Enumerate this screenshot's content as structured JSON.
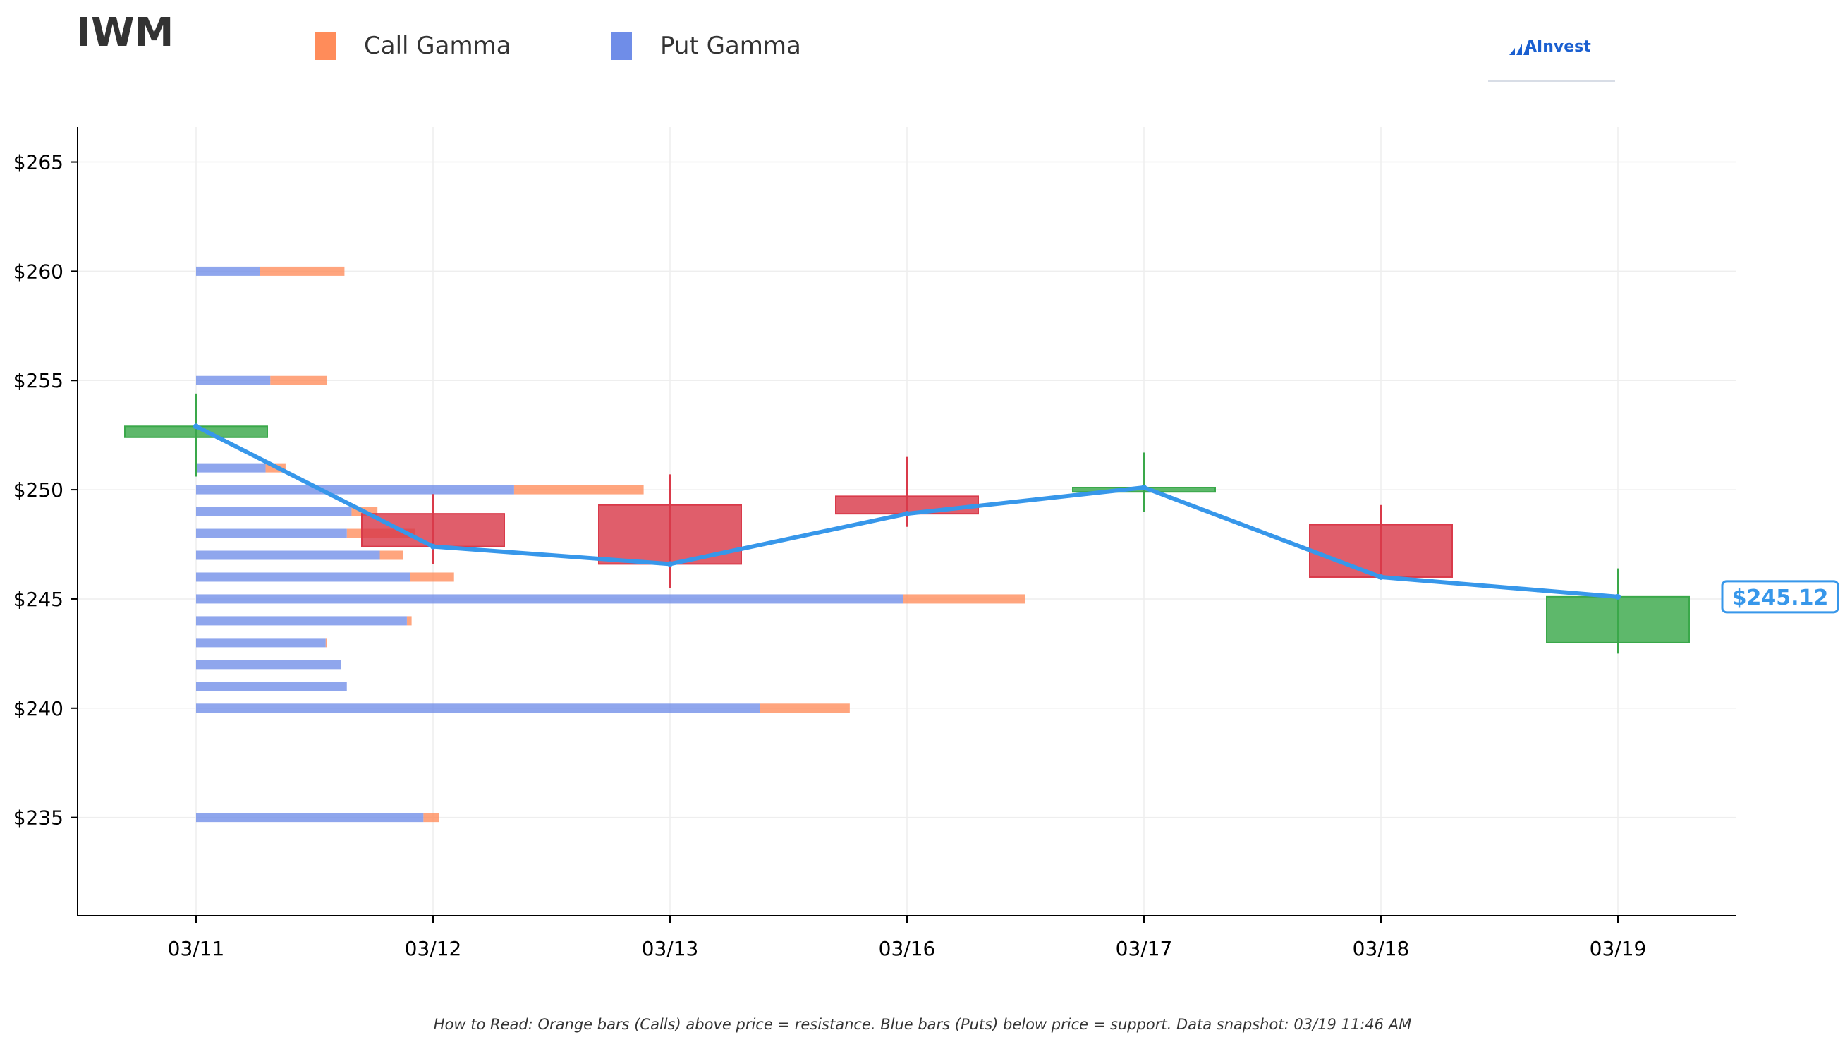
{
  "header": {
    "title": "IWM",
    "logo_text": "AInvest"
  },
  "footnote": "How to Read: Orange bars (Calls) above price = resistance. Blue bars (Puts) below price = support. Data snapshot: 03/19 11:46 AM",
  "colors": {
    "call": "#ff8c5a",
    "put": "#6f8de8",
    "up": "#3aa84a",
    "down": "#d93a4a",
    "price_line": "#3797ea"
  },
  "chart_data": {
    "type": "candlestick+bar",
    "title": "IWM",
    "legend": {
      "placement": "top-left",
      "entries": [
        {
          "name": "Call Gamma",
          "color": "#ff8c5a"
        },
        {
          "name": "Put Gamma",
          "color": "#6f8de8"
        }
      ]
    },
    "x_categories": [
      "03/11",
      "03/12",
      "03/13",
      "03/16",
      "03/17",
      "03/18",
      "03/19"
    ],
    "y_ticks": [
      {
        "value": 235,
        "label": "$235"
      },
      {
        "value": 240,
        "label": "$240"
      },
      {
        "value": 245,
        "label": "$245"
      },
      {
        "value": 250,
        "label": "$250"
      },
      {
        "value": 255,
        "label": "$255"
      },
      {
        "value": 260,
        "label": "$260"
      },
      {
        "value": 265,
        "label": "$265"
      }
    ],
    "ylim": [
      230.5,
      266.6
    ],
    "grid": true,
    "candles": [
      {
        "date": "03/11",
        "open": 252.4,
        "close": 252.9,
        "high": 254.4,
        "low": 250.6
      },
      {
        "date": "03/12",
        "open": 248.9,
        "close": 247.4,
        "high": 249.8,
        "low": 246.6
      },
      {
        "date": "03/13",
        "open": 249.3,
        "close": 246.6,
        "high": 250.7,
        "low": 245.5
      },
      {
        "date": "03/16",
        "open": 249.7,
        "close": 248.9,
        "high": 251.5,
        "low": 248.3
      },
      {
        "date": "03/17",
        "open": 249.9,
        "close": 250.1,
        "high": 251.7,
        "low": 249.0
      },
      {
        "date": "03/18",
        "open": 248.4,
        "close": 246.0,
        "high": 249.3,
        "low": 245.9
      },
      {
        "date": "03/19",
        "open": 243.0,
        "close": 245.1,
        "high": 246.4,
        "low": 242.5
      }
    ],
    "price_line": [
      252.9,
      247.4,
      246.6,
      248.9,
      250.1,
      246.0,
      245.1
    ],
    "current_price_label": "$245.12",
    "gamma_units": "relative",
    "gamma_levels": [
      {
        "strike": 260,
        "put": 0.54,
        "call": 0.72
      },
      {
        "strike": 255,
        "put": 0.63,
        "call": 0.48
      },
      {
        "strike": 251,
        "put": 0.59,
        "call": 0.17
      },
      {
        "strike": 250,
        "put": 2.7,
        "call": 1.1
      },
      {
        "strike": 249,
        "put": 1.32,
        "call": 0.22
      },
      {
        "strike": 248,
        "put": 1.28,
        "call": 0.58
      },
      {
        "strike": 247,
        "put": 1.56,
        "call": 0.2
      },
      {
        "strike": 246,
        "put": 1.82,
        "call": 0.37
      },
      {
        "strike": 245,
        "put": 6.0,
        "call": 1.04
      },
      {
        "strike": 244,
        "put": 1.79,
        "call": 0.04
      },
      {
        "strike": 243,
        "put": 1.1,
        "call": 0.01
      },
      {
        "strike": 242,
        "put": 1.23,
        "call": 0.0
      },
      {
        "strike": 241,
        "put": 1.28,
        "call": 0.0
      },
      {
        "strike": 240,
        "put": 4.79,
        "call": 0.76
      },
      {
        "strike": 235,
        "put": 1.93,
        "call": 0.13
      }
    ]
  }
}
